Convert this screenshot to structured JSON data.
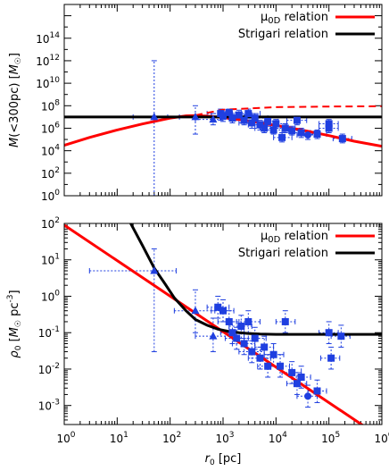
{
  "chart_data": [
    {
      "type": "scatter",
      "title": "",
      "xlabel": "",
      "ylabel": "M(<300pc) [M_☉]",
      "ylabel_parts": {
        "pre": "M",
        "mid": "(<300pc) [",
        "italic": "M",
        "sub": "☉",
        "post": "]"
      },
      "xscale": "log",
      "yscale": "log",
      "xlim": [
        1,
        1000000
      ],
      "ylim": [
        1,
        100000000000000000
      ],
      "xtick_labels": [],
      "ytick_labels": [
        "10^0",
        "10^2",
        "10^4",
        "10^6",
        "10^8",
        "10^10",
        "10^12",
        "10^14"
      ],
      "legend_position": "top-right",
      "legend": [
        {
          "label_main": "μ",
          "label_sub": "0D",
          "label_tail": " relation",
          "color": "#ff0000"
        },
        {
          "label_main": "Strigari relation",
          "label_sub": "",
          "label_tail": "",
          "color": "#000000"
        }
      ],
      "lines": [
        {
          "name": "mu0D-relation",
          "color": "#ff0000",
          "style": "solid",
          "x": [
            1,
            3,
            10,
            30,
            100,
            200,
            300,
            500,
            1000,
            3000,
            10000,
            30000,
            100000,
            300000,
            1000000
          ],
          "y": [
            30000,
            150000,
            700000,
            2400000,
            8000000,
            12600000,
            13000000,
            12000000,
            9000000,
            4500000,
            1800000,
            700000,
            220000,
            70000,
            25000
          ]
        },
        {
          "name": "mu0D-relation-dashed",
          "color": "#ff0000",
          "style": "dashed",
          "x": [
            300,
            1000,
            10000,
            100000,
            1000000
          ],
          "y": [
            14000000,
            45000000,
            75000000,
            85000000,
            90000000
          ]
        },
        {
          "name": "strigari-relation",
          "color": "#000000",
          "style": "solid",
          "x": [
            1,
            1000000
          ],
          "y": [
            10000000,
            10000000
          ]
        }
      ],
      "points": [
        {
          "marker": "triangle",
          "x": 50,
          "y": 10000000,
          "xerr": [
            20,
            90
          ],
          "yerr": [
            1,
            1000000000000
          ]
        },
        {
          "marker": "triangle",
          "x": 300,
          "y": 10000000,
          "xerr": [
            150,
            600
          ],
          "yerr": [
            300000,
            100000000
          ]
        },
        {
          "marker": "triangle",
          "x": 650,
          "y": 6000000,
          "xerr": [
            300,
            1500
          ],
          "yerr": [
            2000000,
            20000000
          ]
        },
        {
          "marker": "square",
          "x": 900,
          "y": 20000000,
          "xerr": [
            500,
            1500
          ],
          "yerr": [
            5000000,
            50000000
          ]
        },
        {
          "marker": "square",
          "x": 1000,
          "y": 12000000,
          "xerr": [
            600,
            2000
          ],
          "yerr": [
            4000000,
            30000000
          ]
        },
        {
          "marker": "square",
          "x": 1300,
          "y": 25000000,
          "xerr": [
            900,
            2200
          ],
          "yerr": [
            10000000,
            50000000
          ]
        },
        {
          "marker": "square",
          "x": 1500,
          "y": 8000000,
          "xerr": [
            1000,
            2500
          ],
          "yerr": [
            3000000,
            20000000
          ]
        },
        {
          "marker": "square",
          "x": 2000,
          "y": 15000000,
          "xerr": [
            1300,
            3500
          ],
          "yerr": [
            5000000,
            40000000
          ]
        },
        {
          "marker": "square",
          "x": 2500,
          "y": 5000000,
          "xerr": [
            1500,
            4000
          ],
          "yerr": [
            2000000,
            12000000
          ]
        },
        {
          "marker": "square",
          "x": 3000,
          "y": 20000000,
          "xerr": [
            2000,
            5000
          ],
          "yerr": [
            8000000,
            50000000
          ]
        },
        {
          "marker": "square",
          "x": 3500,
          "y": 3000000,
          "xerr": [
            2000,
            6000
          ],
          "yerr": [
            1000000,
            8000000
          ]
        },
        {
          "marker": "square",
          "x": 4000,
          "y": 8000000,
          "xerr": [
            2500,
            7000
          ],
          "yerr": [
            3000000,
            20000000
          ]
        },
        {
          "marker": "square",
          "x": 5000,
          "y": 2000000,
          "xerr": [
            3000,
            8000
          ],
          "yerr": [
            700000,
            5000000
          ]
        },
        {
          "marker": "square",
          "x": 6000,
          "y": 1000000,
          "xerr": [
            4000,
            9000
          ],
          "yerr": [
            400000,
            3000000
          ]
        },
        {
          "marker": "square",
          "x": 7000,
          "y": 4000000,
          "xerr": [
            4500,
            11000
          ],
          "yerr": [
            1500000,
            10000000
          ]
        },
        {
          "marker": "square",
          "x": 9000,
          "y": 700000,
          "xerr": [
            6000,
            14000
          ],
          "yerr": [
            300000,
            2000000
          ]
        },
        {
          "marker": "square",
          "x": 10000,
          "y": 2500000,
          "xerr": [
            6500,
            16000
          ],
          "yerr": [
            1000000,
            6000000
          ]
        },
        {
          "marker": "square",
          "x": 13000,
          "y": 150000,
          "xerr": [
            9000,
            20000
          ],
          "yerr": [
            60000,
            400000
          ]
        },
        {
          "marker": "square",
          "x": 15000,
          "y": 1000000,
          "xerr": [
            10000,
            23000
          ],
          "yerr": [
            400000,
            2500000
          ]
        },
        {
          "marker": "square",
          "x": 20000,
          "y": 600000,
          "xerr": [
            13000,
            30000
          ],
          "yerr": [
            250000,
            1500000
          ]
        },
        {
          "marker": "square",
          "x": 25000,
          "y": 5000000,
          "xerr": [
            16000,
            38000
          ],
          "yerr": [
            2000000,
            12000000
          ]
        },
        {
          "marker": "square",
          "x": 30000,
          "y": 400000,
          "xerr": [
            20000,
            45000
          ],
          "yerr": [
            150000,
            1000000
          ]
        },
        {
          "marker": "circle",
          "x": 40000,
          "y": 250000,
          "xerr": [
            25000,
            60000
          ],
          "yerr": [
            100000,
            600000
          ]
        },
        {
          "marker": "square",
          "x": 60000,
          "y": 300000,
          "xerr": [
            40000,
            90000
          ],
          "yerr": [
            120000,
            700000
          ]
        },
        {
          "marker": "square",
          "x": 100000,
          "y": 2500000,
          "xerr": [
            65000,
            150000
          ],
          "yerr": [
            1000000,
            6000000
          ]
        },
        {
          "marker": "square",
          "x": 100000,
          "y": 1000000,
          "xerr": [
            65000,
            150000
          ],
          "yerr": [
            400000,
            2500000
          ]
        },
        {
          "marker": "square",
          "x": 180000,
          "y": 120000,
          "xerr": [
            120000,
            270000
          ],
          "yerr": [
            50000,
            300000
          ]
        }
      ]
    },
    {
      "type": "scatter",
      "title": "",
      "xlabel": "r_0 [pc]",
      "xlabel_parts": {
        "main": "r",
        "sub": "0",
        "post": " [pc]"
      },
      "ylabel": "ρ_0 [M_☉ pc^-3]",
      "ylabel_parts": {
        "main": "ρ",
        "sub": "0",
        "mid": " [",
        "italic": "M",
        "sub2": "☉",
        "unit": "pc",
        "sup": "-3",
        "post": "]"
      },
      "xscale": "log",
      "yscale": "log",
      "xlim": [
        1,
        1000000
      ],
      "ylim": [
        0.0003,
        100
      ],
      "xtick_labels": [
        "10^0",
        "10^1",
        "10^2",
        "10^3",
        "10^4",
        "10^5",
        "10^6"
      ],
      "ytick_labels": [
        "10^-3",
        "10^-2",
        "10^-1",
        "10^0",
        "10^1",
        "10^2"
      ],
      "legend_position": "top-right",
      "legend": [
        {
          "label_main": "μ",
          "label_sub": "0D",
          "label_tail": " relation",
          "color": "#ff0000"
        },
        {
          "label_main": "Strigari relation",
          "label_sub": "",
          "label_tail": "",
          "color": "#000000"
        }
      ],
      "lines": [
        {
          "name": "mu0D-relation",
          "color": "#ff0000",
          "style": "solid",
          "x": [
            1,
            500000
          ],
          "y": [
            90,
            0.00025
          ]
        },
        {
          "name": "strigari-relation",
          "color": "#000000",
          "style": "solid",
          "x": [
            18,
            30,
            50,
            80,
            120,
            200,
            300,
            500,
            800,
            1200,
            2000,
            3000,
            5000,
            10000,
            100000,
            1000000
          ],
          "y": [
            100,
            25,
            6,
            2.2,
            0.9,
            0.4,
            0.23,
            0.16,
            0.125,
            0.11,
            0.1,
            0.095,
            0.092,
            0.09,
            0.09,
            0.09
          ]
        }
      ],
      "points": [
        {
          "marker": "triangle",
          "x": 50,
          "y": 5,
          "xerr": [
            3,
            130
          ],
          "yerr": [
            0.03,
            20
          ]
        },
        {
          "marker": "triangle",
          "x": 300,
          "y": 0.4,
          "xerr": [
            120,
            700
          ],
          "yerr": [
            0.1,
            1.5
          ]
        },
        {
          "marker": "triangle",
          "x": 650,
          "y": 0.08,
          "xerr": [
            300,
            1500
          ],
          "yerr": [
            0.03,
            0.25
          ]
        },
        {
          "marker": "square",
          "x": 800,
          "y": 0.5,
          "xerr": [
            500,
            1300
          ],
          "yerr": [
            0.25,
            1
          ]
        },
        {
          "marker": "square",
          "x": 1000,
          "y": 0.4,
          "xerr": [
            600,
            1600
          ],
          "yerr": [
            0.2,
            0.8
          ]
        },
        {
          "marker": "square",
          "x": 1300,
          "y": 0.2,
          "xerr": [
            800,
            2000
          ],
          "yerr": [
            0.1,
            0.4
          ]
        },
        {
          "marker": "square",
          "x": 1500,
          "y": 0.1,
          "xerr": [
            900,
            2500
          ],
          "yerr": [
            0.05,
            0.2
          ]
        },
        {
          "marker": "square",
          "x": 1800,
          "y": 0.07,
          "xerr": [
            1100,
            3000
          ],
          "yerr": [
            0.035,
            0.14
          ]
        },
        {
          "marker": "square",
          "x": 2200,
          "y": 0.15,
          "xerr": [
            1300,
            3500
          ],
          "yerr": [
            0.07,
            0.3
          ]
        },
        {
          "marker": "square",
          "x": 2500,
          "y": 0.05,
          "xerr": [
            1500,
            4000
          ],
          "yerr": [
            0.025,
            0.1
          ]
        },
        {
          "marker": "square",
          "x": 3000,
          "y": 0.2,
          "xerr": [
            1800,
            5000
          ],
          "yerr": [
            0.1,
            0.4
          ]
        },
        {
          "marker": "square",
          "x": 3500,
          "y": 0.03,
          "xerr": [
            2000,
            6000
          ],
          "yerr": [
            0.015,
            0.06
          ]
        },
        {
          "marker": "square",
          "x": 4000,
          "y": 0.07,
          "xerr": [
            2500,
            6500
          ],
          "yerr": [
            0.035,
            0.14
          ]
        },
        {
          "marker": "square",
          "x": 5000,
          "y": 0.02,
          "xerr": [
            3000,
            8000
          ],
          "yerr": [
            0.01,
            0.04
          ]
        },
        {
          "marker": "square",
          "x": 6000,
          "y": 0.04,
          "xerr": [
            4000,
            9000
          ],
          "yerr": [
            0.02,
            0.08
          ]
        },
        {
          "marker": "square",
          "x": 7000,
          "y": 0.012,
          "xerr": [
            4500,
            11000
          ],
          "yerr": [
            0.006,
            0.025
          ]
        },
        {
          "marker": "square",
          "x": 9000,
          "y": 0.025,
          "xerr": [
            6000,
            14000
          ],
          "yerr": [
            0.012,
            0.05
          ]
        },
        {
          "marker": "square",
          "x": 12000,
          "y": 0.012,
          "xerr": [
            8000,
            18000
          ],
          "yerr": [
            0.006,
            0.025
          ]
        },
        {
          "marker": "square",
          "x": 15000,
          "y": 0.2,
          "xerr": [
            10000,
            23000
          ],
          "yerr": [
            0.1,
            0.4
          ]
        },
        {
          "marker": "square",
          "x": 20000,
          "y": 0.008,
          "xerr": [
            13000,
            30000
          ],
          "yerr": [
            0.004,
            0.016
          ]
        },
        {
          "marker": "square",
          "x": 25000,
          "y": 0.004,
          "xerr": [
            16000,
            38000
          ],
          "yerr": [
            0.002,
            0.008
          ]
        },
        {
          "marker": "square",
          "x": 30000,
          "y": 0.006,
          "xerr": [
            20000,
            45000
          ],
          "yerr": [
            0.003,
            0.012
          ]
        },
        {
          "marker": "circle",
          "x": 40000,
          "y": 0.0018,
          "xerr": [
            25000,
            60000
          ],
          "yerr": [
            0.0009,
            0.0036
          ]
        },
        {
          "marker": "square",
          "x": 60000,
          "y": 0.0025,
          "xerr": [
            40000,
            90000
          ],
          "yerr": [
            0.0012,
            0.005
          ]
        },
        {
          "marker": "square",
          "x": 100000,
          "y": 0.1,
          "xerr": [
            65000,
            150000
          ],
          "yerr": [
            0.05,
            0.2
          ]
        },
        {
          "marker": "square",
          "x": 110000,
          "y": 0.02,
          "xerr": [
            70000,
            160000
          ],
          "yerr": [
            0.01,
            0.04
          ]
        },
        {
          "marker": "square",
          "x": 170000,
          "y": 0.08,
          "xerr": [
            110000,
            250000
          ],
          "yerr": [
            0.04,
            0.16
          ]
        }
      ]
    }
  ]
}
